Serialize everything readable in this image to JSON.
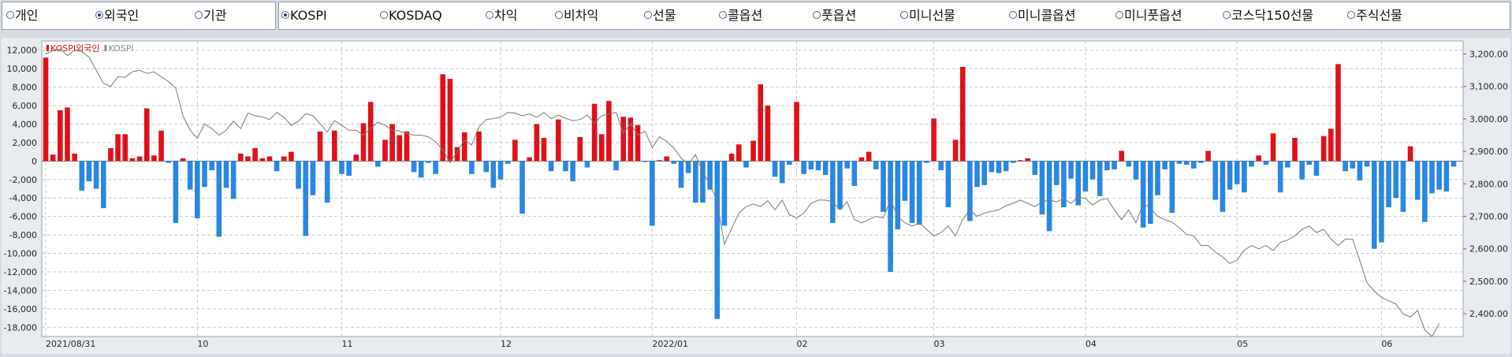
{
  "investor_options": [
    {
      "label": "개인",
      "selected": false
    },
    {
      "label": "외국인",
      "selected": true
    },
    {
      "label": "기관",
      "selected": false
    }
  ],
  "market_options": [
    {
      "label": "KOSPI",
      "selected": true
    },
    {
      "label": "KOSDAQ",
      "selected": false
    },
    {
      "label": "차익",
      "selected": false
    },
    {
      "label": "비차익",
      "selected": false
    },
    {
      "label": "선물",
      "selected": false
    },
    {
      "label": "콜옵션",
      "selected": false
    },
    {
      "label": "풋옵션",
      "selected": false
    },
    {
      "label": "미니선물",
      "selected": false
    },
    {
      "label": "미니콜옵션",
      "selected": false
    },
    {
      "label": "미니풋옵션",
      "selected": false
    },
    {
      "label": "코스닥150선물",
      "selected": false
    },
    {
      "label": "주식선물",
      "selected": false
    }
  ],
  "colors": {
    "positive": "#e0101a",
    "negative": "#2b86e3",
    "index_line": "#7a7a7a",
    "plot_bg": "#ffffff",
    "grid": "#c8c8c8"
  },
  "chart_data": {
    "type": "bar",
    "legend": [
      {
        "name": "KOSPI외국인",
        "color": "#e0101a"
      },
      {
        "name": "KOSPI",
        "color": "#8a8a8a"
      }
    ],
    "legend_position": "top-left",
    "grid": true,
    "y_left": {
      "ylim": [
        -19000,
        13000
      ],
      "ticks": [
        12000,
        10000,
        8000,
        6000,
        4000,
        2000,
        0,
        -2000,
        -4000,
        -6000,
        -8000,
        -10000,
        -12000,
        -14000,
        -16000,
        -18000
      ],
      "tick_labels": [
        "12,000",
        "10,000",
        "8,000",
        "6,000",
        "4,000",
        "2,000",
        "0",
        "-2,000",
        "-4,000",
        "-6,000",
        "-8,000",
        "-10,000",
        "-12,000",
        "-14,000",
        "-16,000",
        "-18,000"
      ]
    },
    "y_right": {
      "ylim": [
        2330,
        3240
      ],
      "ticks": [
        3200,
        3100,
        3000,
        2900,
        2800,
        2700,
        2600,
        2500,
        2400
      ],
      "tick_labels": [
        "3,200.00",
        "3,100.00",
        "3,000.00",
        "2,900.00",
        "2,800.00",
        "2,700.00",
        "2,600.00",
        "2,500.00",
        "2,400.00"
      ]
    },
    "x_ticks": [
      {
        "index": 0,
        "label": "2021/08/31"
      },
      {
        "index": 21,
        "label": "10"
      },
      {
        "index": 41,
        "label": "11"
      },
      {
        "index": 63,
        "label": "12"
      },
      {
        "index": 84,
        "label": "2022/01"
      },
      {
        "index": 104,
        "label": "02"
      },
      {
        "index": 123,
        "label": "03"
      },
      {
        "index": 144,
        "label": "04"
      },
      {
        "index": 165,
        "label": "05"
      },
      {
        "index": 185,
        "label": "06"
      }
    ],
    "series": [
      {
        "name": "KOSPI외국인",
        "values": [
          11200,
          700,
          5500,
          5800,
          800,
          -3200,
          -2200,
          -3000,
          -5100,
          1400,
          2900,
          2900,
          300,
          500,
          5700,
          600,
          3300,
          -200,
          -6700,
          300,
          -3100,
          -6200,
          -2800,
          -1000,
          -8200,
          -2900,
          -4100,
          800,
          500,
          1400,
          300,
          500,
          -1100,
          500,
          1000,
          -3000,
          -8100,
          -3700,
          3200,
          -4500,
          3300,
          -1400,
          -1600,
          700,
          4100,
          6400,
          -600,
          2300,
          4000,
          2800,
          3200,
          -1200,
          -1800,
          -200,
          -1400,
          9400,
          8900,
          1500,
          3100,
          -1400,
          3200,
          -1200,
          -2900,
          -2000,
          -300,
          2300,
          -5700,
          400,
          4000,
          2500,
          -1100,
          4500,
          -1100,
          -2200,
          2600,
          -700,
          6200,
          2900,
          6500,
          -1000,
          4800,
          4700,
          3900,
          -100,
          -7000,
          100,
          500,
          -300,
          -2900,
          -1300,
          -4500,
          -4500,
          -3100,
          -17100,
          -7000,
          800,
          1800,
          -700,
          2200,
          8300,
          6000,
          -1700,
          -2400,
          -400,
          6400,
          -1400,
          -900,
          -1000,
          -1500,
          -6700,
          -5200,
          -800,
          -2700,
          400,
          1000,
          -900,
          -5500,
          -12000,
          -7400,
          -4300,
          -6700,
          -6900,
          -200,
          4600,
          -1000,
          -5000,
          2300,
          10200,
          -6500,
          -2800,
          -2600,
          -1200,
          -1300,
          -1100,
          -200,
          100,
          300,
          -1500,
          -5800,
          -7600,
          -2600,
          -5000,
          -1900,
          -4800,
          -3300,
          -2000,
          -3800,
          -1000,
          -900,
          1100,
          -600,
          -2000,
          -7200,
          -6800,
          -3700,
          -900,
          -5600,
          -300,
          -400,
          -800,
          -200,
          1100,
          -4200,
          -5500,
          -3100,
          -2500,
          -3400,
          -600,
          600,
          -400,
          3000,
          -3400,
          -700,
          2500,
          -2000,
          -400,
          -1600,
          2700,
          3500,
          10500,
          -1100,
          -800,
          -2100,
          -600,
          -9500,
          -8800,
          -5000,
          -4000,
          -5500,
          1600,
          -4200,
          -6600,
          -3500,
          -3100,
          -3300,
          -600
        ]
      },
      {
        "name": "KOSPI",
        "values": [
          3200,
          3210,
          3215,
          3195,
          3212,
          3207,
          3190,
          3150,
          3110,
          3100,
          3130,
          3128,
          3145,
          3150,
          3140,
          3145,
          3130,
          3115,
          3095,
          3010,
          2965,
          2940,
          2985,
          2970,
          2950,
          2965,
          2993,
          2970,
          3018,
          3010,
          3006,
          2998,
          3020,
          3005,
          2980,
          2993,
          3016,
          3010,
          2985,
          2960,
          2995,
          2980,
          2965,
          2965,
          2950,
          2970,
          2990,
          2980,
          2965,
          2963,
          2955,
          2950,
          2950,
          2945,
          2930,
          2905,
          2865,
          2900,
          2935,
          2920,
          2975,
          2998,
          3001,
          3005,
          3020,
          3018,
          3010,
          3015,
          3005,
          3020,
          3001,
          3012,
          3002,
          2995,
          2998,
          3012,
          2987,
          3010,
          3015,
          3020,
          2955,
          2986,
          2950,
          2962,
          2912,
          2945,
          2931,
          2910,
          2880,
          2860,
          2890,
          2835,
          2800,
          2745,
          2614,
          2663,
          2710,
          2730,
          2738,
          2730,
          2748,
          2720,
          2750,
          2705,
          2695,
          2710,
          2740,
          2750,
          2750,
          2745,
          2720,
          2745,
          2690,
          2680,
          2690,
          2700,
          2695,
          2750,
          2700,
          2680,
          2670,
          2680,
          2660,
          2640,
          2650,
          2670,
          2640,
          2690,
          2720,
          2700,
          2710,
          2715,
          2720,
          2733,
          2740,
          2750,
          2740,
          2730,
          2745,
          2750,
          2745,
          2755,
          2740,
          2760,
          2755,
          2735,
          2750,
          2755,
          2720,
          2690,
          2720,
          2680,
          2740,
          2725,
          2700,
          2690,
          2682,
          2665,
          2645,
          2640,
          2610,
          2610,
          2590,
          2575,
          2555,
          2565,
          2596,
          2610,
          2600,
          2610,
          2595,
          2620,
          2627,
          2640,
          2660,
          2670,
          2650,
          2660,
          2630,
          2610,
          2630,
          2630,
          2565,
          2495,
          2470,
          2450,
          2440,
          2430,
          2400,
          2390,
          2410,
          2350,
          2330,
          2370
        ]
      }
    ]
  }
}
